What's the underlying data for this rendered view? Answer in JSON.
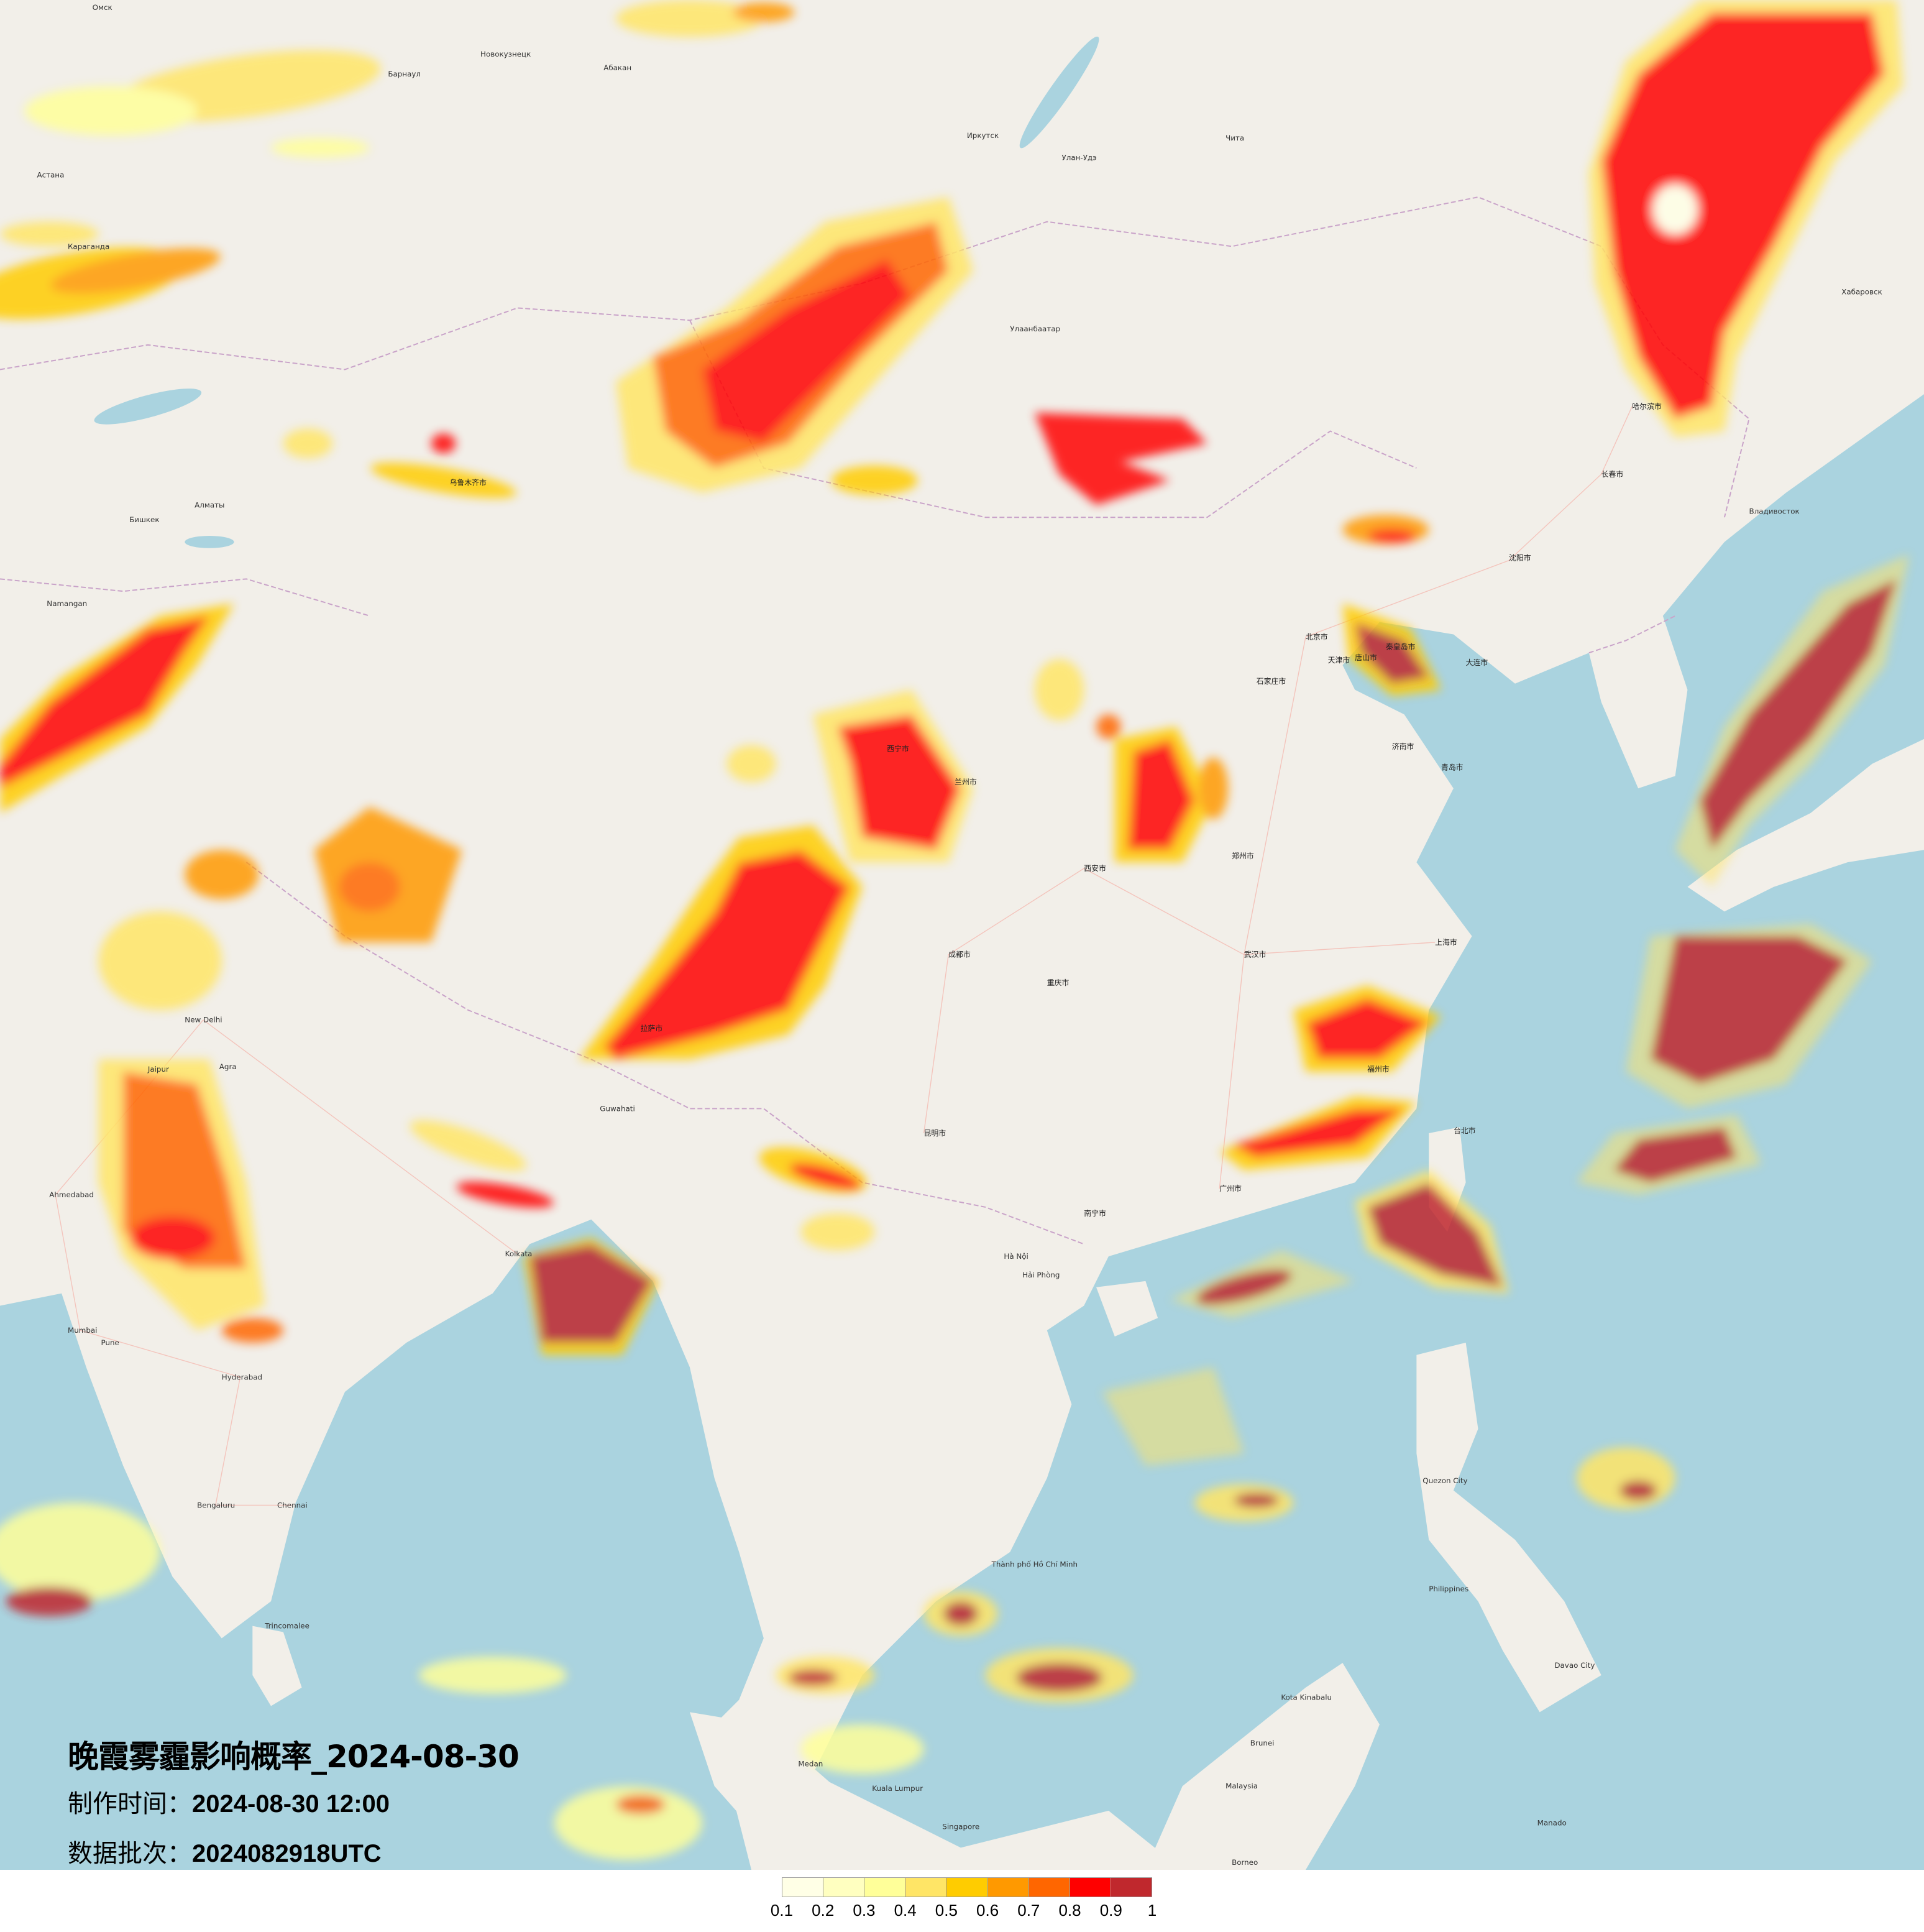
{
  "title": "晚霞雾霾影响概率_2024-08-30",
  "produced_label": "制作时间：",
  "produced_value": "2024-08-30 12:00",
  "batch_label": "数据批次：",
  "batch_value": "2024082918UTC",
  "legend": {
    "ticks": [
      "0.1",
      "0.2",
      "0.3",
      "0.4",
      "0.5",
      "0.6",
      "0.7",
      "0.8",
      "0.9",
      "1"
    ],
    "colors": [
      "#ffffe6",
      "#ffffc0",
      "#ffff99",
      "#ffe566",
      "#ffcc00",
      "#ff9900",
      "#ff6600",
      "#ff0000",
      "#c0282d"
    ]
  },
  "map_colors": {
    "land": "#f2efe9",
    "sea": "#aad3df",
    "border": "#c9a3c9",
    "road": "#f4b9b0"
  },
  "places": {
    "omsk": "Омск",
    "barnaul": "Барнаул",
    "novokuznetsk": "Новокузнецк",
    "abakan": "Абакан",
    "astana": "Астана",
    "karaganda": "Караганда",
    "irkutsk": "Иркутск",
    "ulan_ude": "Улан-Удэ",
    "chita": "Чита",
    "ulaanbaatar": "Улаанбаатар",
    "almaty": "Алматы",
    "bishkek": "Бишкек",
    "namangan": "Namangan",
    "khabarovsk": "Хабаровск",
    "vladivostok": "Владивосток",
    "beijing": "北京市",
    "tianjin": "天津市",
    "tangshan": "唐山市",
    "qinhuangdao": "秦皇岛市",
    "dalian": "大连市",
    "qingdao": "青岛市",
    "jinan": "济南市",
    "shijiazhuang": "石家庄市",
    "zhengzhou": "郑州市",
    "shenyang": "沈阳市",
    "changchun": "长春市",
    "harbin": "哈尔滨市",
    "xian": "西安市",
    "chengdu": "成都市",
    "chongqing": "重庆市",
    "wuhan": "武汉市",
    "shanghai": "上海市",
    "guangzhou": "广州市",
    "kunming": "昆明市",
    "lanzhou": "兰州市",
    "urumqi": "乌鲁木齐市",
    "xining": "西宁市",
    "lhasa": "拉萨市",
    "nanning": "南宁市",
    "fuzhou": "福州市",
    "taipei": "台北市",
    "new_delhi": "New Delhi",
    "jaipur": "Jaipur",
    "agra": "Agra",
    "ahmedabad": "Ahmedabad",
    "mumbai": "Mumbai",
    "pune": "Pune",
    "hyderabad": "Hyderabad",
    "bengaluru": "Bengaluru",
    "chennai": "Chennai",
    "kolkata": "Kolkata",
    "guwahati": "Guwahati",
    "hanoi": "Hà Nội",
    "hai_phong": "Hải Phòng",
    "hcmc": "Thành phố Hồ Chí Minh",
    "kuala_lumpur": "Kuala Lumpur",
    "singapore": "Singapore",
    "medan": "Medan",
    "kota_kinabalu": "Kota Kinabalu",
    "malaysia": "Malaysia",
    "brunei": "Brunei",
    "borneo": "Borneo",
    "philippines": "Philippines",
    "quezon_city": "Quezon City",
    "davao": "Davao City",
    "manado": "Manado",
    "trincomalee": "Trincomalee"
  }
}
